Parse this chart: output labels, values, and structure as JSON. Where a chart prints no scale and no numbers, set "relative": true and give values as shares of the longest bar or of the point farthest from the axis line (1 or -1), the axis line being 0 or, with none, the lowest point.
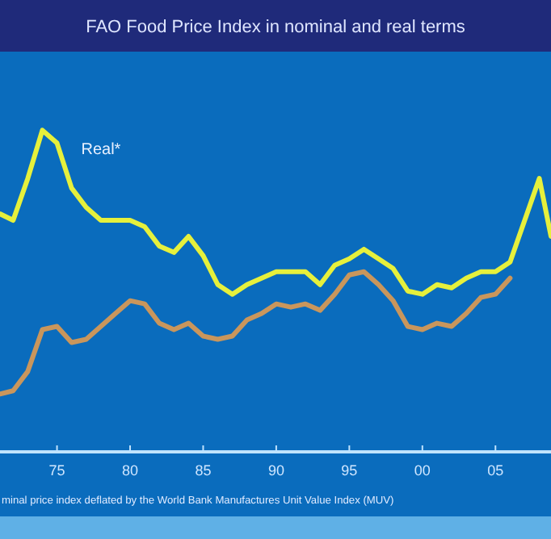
{
  "chart_data": {
    "type": "line",
    "title": "FAO Food Price Index in nominal and real terms",
    "relative": true,
    "xlim": [
      1971.1,
      2008.8
    ],
    "xticks": [
      {
        "value": 1975,
        "label": "75"
      },
      {
        "value": 1980,
        "label": "80"
      },
      {
        "value": 1985,
        "label": "85"
      },
      {
        "value": 1990,
        "label": "90"
      },
      {
        "value": 1995,
        "label": "95"
      },
      {
        "value": 2000,
        "label": "00"
      },
      {
        "value": 2005,
        "label": "05"
      }
    ],
    "line_style": "solid",
    "series": [
      {
        "name": "Real*",
        "color": "#e6f03c",
        "x": [
          1971.1,
          1972,
          1973,
          1974,
          1975,
          1976,
          1977,
          1978,
          1980,
          1981,
          1982,
          1983,
          1984,
          1985,
          1986,
          1987,
          1988,
          1989,
          1990,
          1992,
          1993,
          1994,
          1995,
          1996,
          1997,
          1998,
          1999,
          2000,
          2001,
          2002,
          2003,
          2004,
          2005,
          2006,
          2007,
          2008,
          2008.8
        ],
        "values": [
          0.74,
          0.72,
          0.85,
          1.0,
          0.96,
          0.82,
          0.76,
          0.72,
          0.72,
          0.7,
          0.64,
          0.62,
          0.67,
          0.61,
          0.52,
          0.49,
          0.52,
          0.54,
          0.56,
          0.56,
          0.52,
          0.58,
          0.6,
          0.63,
          0.6,
          0.57,
          0.5,
          0.49,
          0.52,
          0.51,
          0.54,
          0.56,
          0.56,
          0.59,
          0.72,
          0.85,
          0.67
        ]
      },
      {
        "color": "#c9965c",
        "x": [
          1971.1,
          1972,
          1973,
          1974,
          1975,
          1976,
          1977,
          1978,
          1979,
          1980,
          1981,
          1982,
          1983,
          1984,
          1985,
          1986,
          1987,
          1988,
          1989,
          1990,
          1991,
          1992,
          1993,
          1994,
          1995,
          1996,
          1997,
          1998,
          1999,
          2000,
          2001,
          2002,
          2003,
          2004,
          2005,
          2006
        ],
        "values": [
          0.18,
          0.19,
          0.25,
          0.38,
          0.39,
          0.34,
          0.35,
          0.39,
          0.43,
          0.47,
          0.46,
          0.4,
          0.38,
          0.4,
          0.36,
          0.35,
          0.36,
          0.41,
          0.43,
          0.46,
          0.45,
          0.46,
          0.44,
          0.49,
          0.55,
          0.56,
          0.52,
          0.47,
          0.39,
          0.38,
          0.4,
          0.39,
          0.43,
          0.48,
          0.49,
          0.54
        ]
      }
    ],
    "annotations": [
      "minal price index deflated by the World Bank Manufactures Unit Value Index (MUV)"
    ]
  }
}
